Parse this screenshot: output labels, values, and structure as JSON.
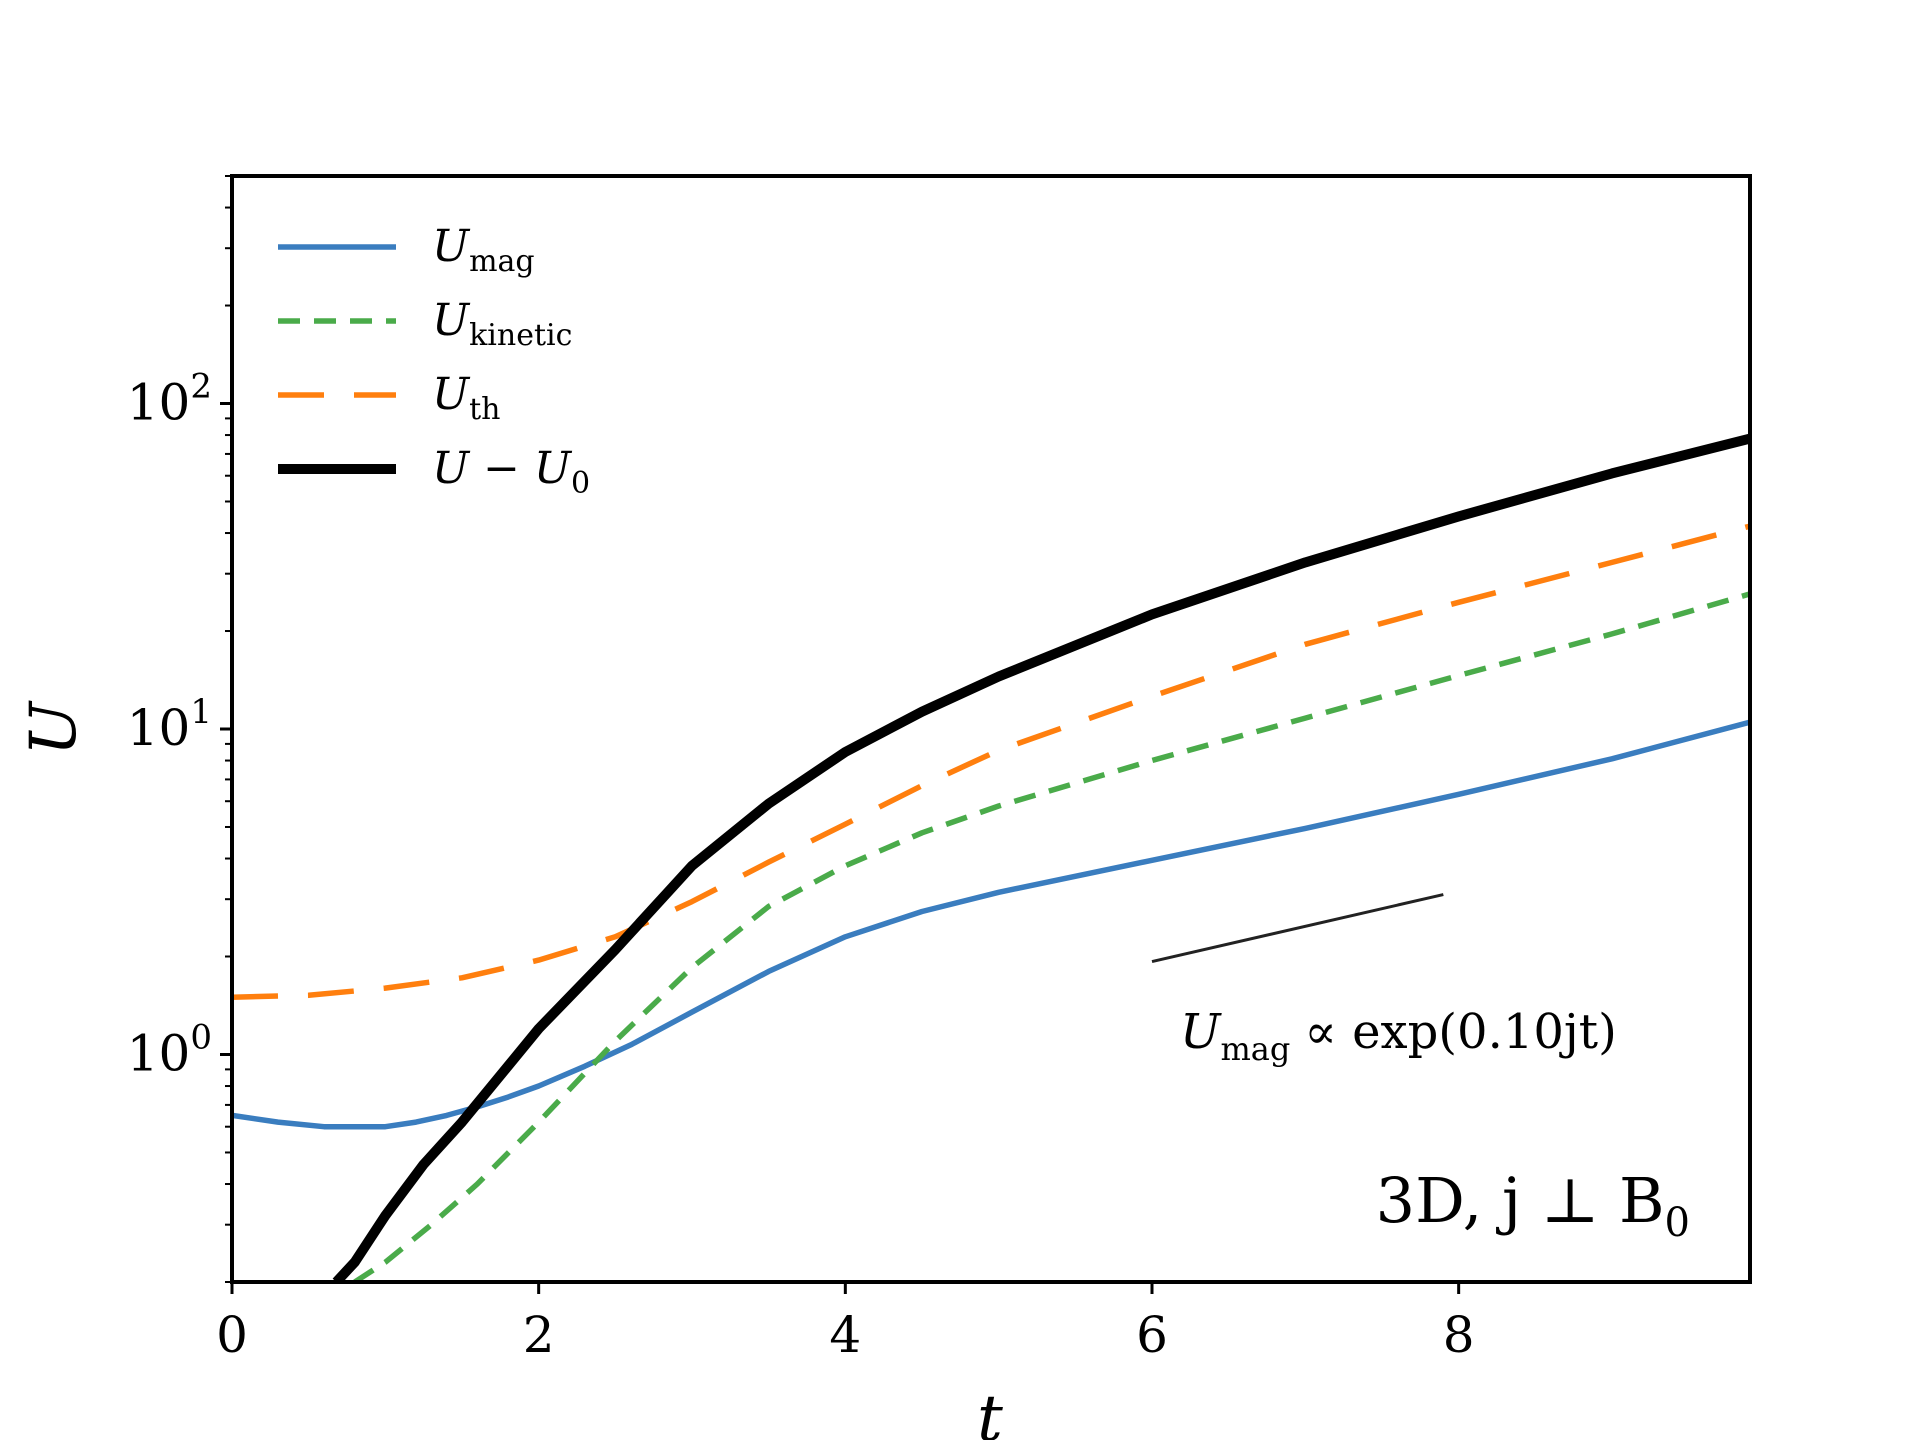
{
  "chart_data": {
    "type": "line",
    "yscale": "log",
    "xlim": [
      0,
      9.9
    ],
    "ylim": [
      0.2,
      500
    ],
    "x_ticks": [
      {
        "value": 0,
        "label": "0"
      },
      {
        "value": 2,
        "label": "2"
      },
      {
        "value": 4,
        "label": "4"
      },
      {
        "value": 6,
        "label": "6"
      },
      {
        "value": 8,
        "label": "8"
      }
    ],
    "y_ticks": [
      {
        "value": 1,
        "base": "10",
        "exp": "0"
      },
      {
        "value": 10,
        "base": "10",
        "exp": "1"
      },
      {
        "value": 100,
        "base": "10",
        "exp": "2"
      }
    ],
    "xlabel": "t",
    "ylabel": "U",
    "series": [
      {
        "name": "U_mag",
        "legend": {
          "main": "U",
          "sub": "mag"
        },
        "color": "#3a7dbf",
        "dash": "solid",
        "width": "normal",
        "x": [
          0,
          0.3,
          0.6,
          0.8,
          1.0,
          1.2,
          1.4,
          1.6,
          1.8,
          2.0,
          2.3,
          2.6,
          3.0,
          3.5,
          4.0,
          4.5,
          5.0,
          6.0,
          7.0,
          8.0,
          9.0,
          9.9
        ],
        "y": [
          0.65,
          0.62,
          0.6,
          0.6,
          0.6,
          0.62,
          0.65,
          0.69,
          0.74,
          0.8,
          0.92,
          1.07,
          1.35,
          1.8,
          2.3,
          2.75,
          3.15,
          3.95,
          4.95,
          6.3,
          8.1,
          10.5
        ]
      },
      {
        "name": "U_kinetic",
        "legend": {
          "main": "U",
          "sub": "kinetic"
        },
        "color": "#4aab4a",
        "dash": "short",
        "width": "normal",
        "x": [
          0.8,
          1.0,
          1.3,
          1.6,
          2.0,
          2.5,
          3.0,
          3.5,
          4.0,
          4.5,
          5.0,
          6.0,
          7.0,
          8.0,
          9.0,
          9.9
        ],
        "y": [
          0.2,
          0.23,
          0.3,
          0.4,
          0.62,
          1.1,
          1.85,
          2.85,
          3.8,
          4.8,
          5.8,
          8.0,
          10.8,
          14.6,
          19.6,
          26
        ]
      },
      {
        "name": "U_th",
        "legend": {
          "main": "U",
          "sub": "th"
        },
        "color": "#ff7f0e",
        "dash": "long",
        "width": "normal",
        "x": [
          0,
          0.5,
          1.0,
          1.5,
          2.0,
          2.5,
          3.0,
          3.5,
          4.0,
          4.5,
          5.0,
          6.0,
          7.0,
          8.0,
          9.0,
          9.9
        ],
        "y": [
          1.5,
          1.52,
          1.6,
          1.72,
          1.95,
          2.3,
          2.95,
          3.9,
          5.1,
          6.7,
          8.6,
          12.6,
          18.2,
          24.5,
          32.5,
          42
        ]
      },
      {
        "name": "U - U0",
        "legend": {
          "main": "U − U",
          "sub": "0"
        },
        "color": "#000000",
        "dash": "solid",
        "width": "thick",
        "x": [
          0.68,
          0.8,
          1.0,
          1.25,
          1.5,
          2.0,
          2.5,
          3.0,
          3.5,
          4.0,
          4.5,
          5.0,
          6.0,
          7.0,
          8.0,
          9.0,
          9.9
        ],
        "y": [
          0.2,
          0.23,
          0.32,
          0.46,
          0.62,
          1.2,
          2.1,
          3.8,
          5.9,
          8.5,
          11.3,
          14.5,
          22.5,
          32.5,
          45,
          61,
          78
        ]
      }
    ],
    "reference_line": {
      "x": [
        6.0,
        7.9
      ],
      "y": [
        1.93,
        3.1
      ]
    },
    "annotations": {
      "scaling": {
        "main": "U",
        "sub": "mag",
        "rest": "∝ exp(0.10jt)"
      },
      "case": {
        "text": "3D, j ⊥ B",
        "sub": "0"
      }
    },
    "legend_position": "upper-left"
  }
}
